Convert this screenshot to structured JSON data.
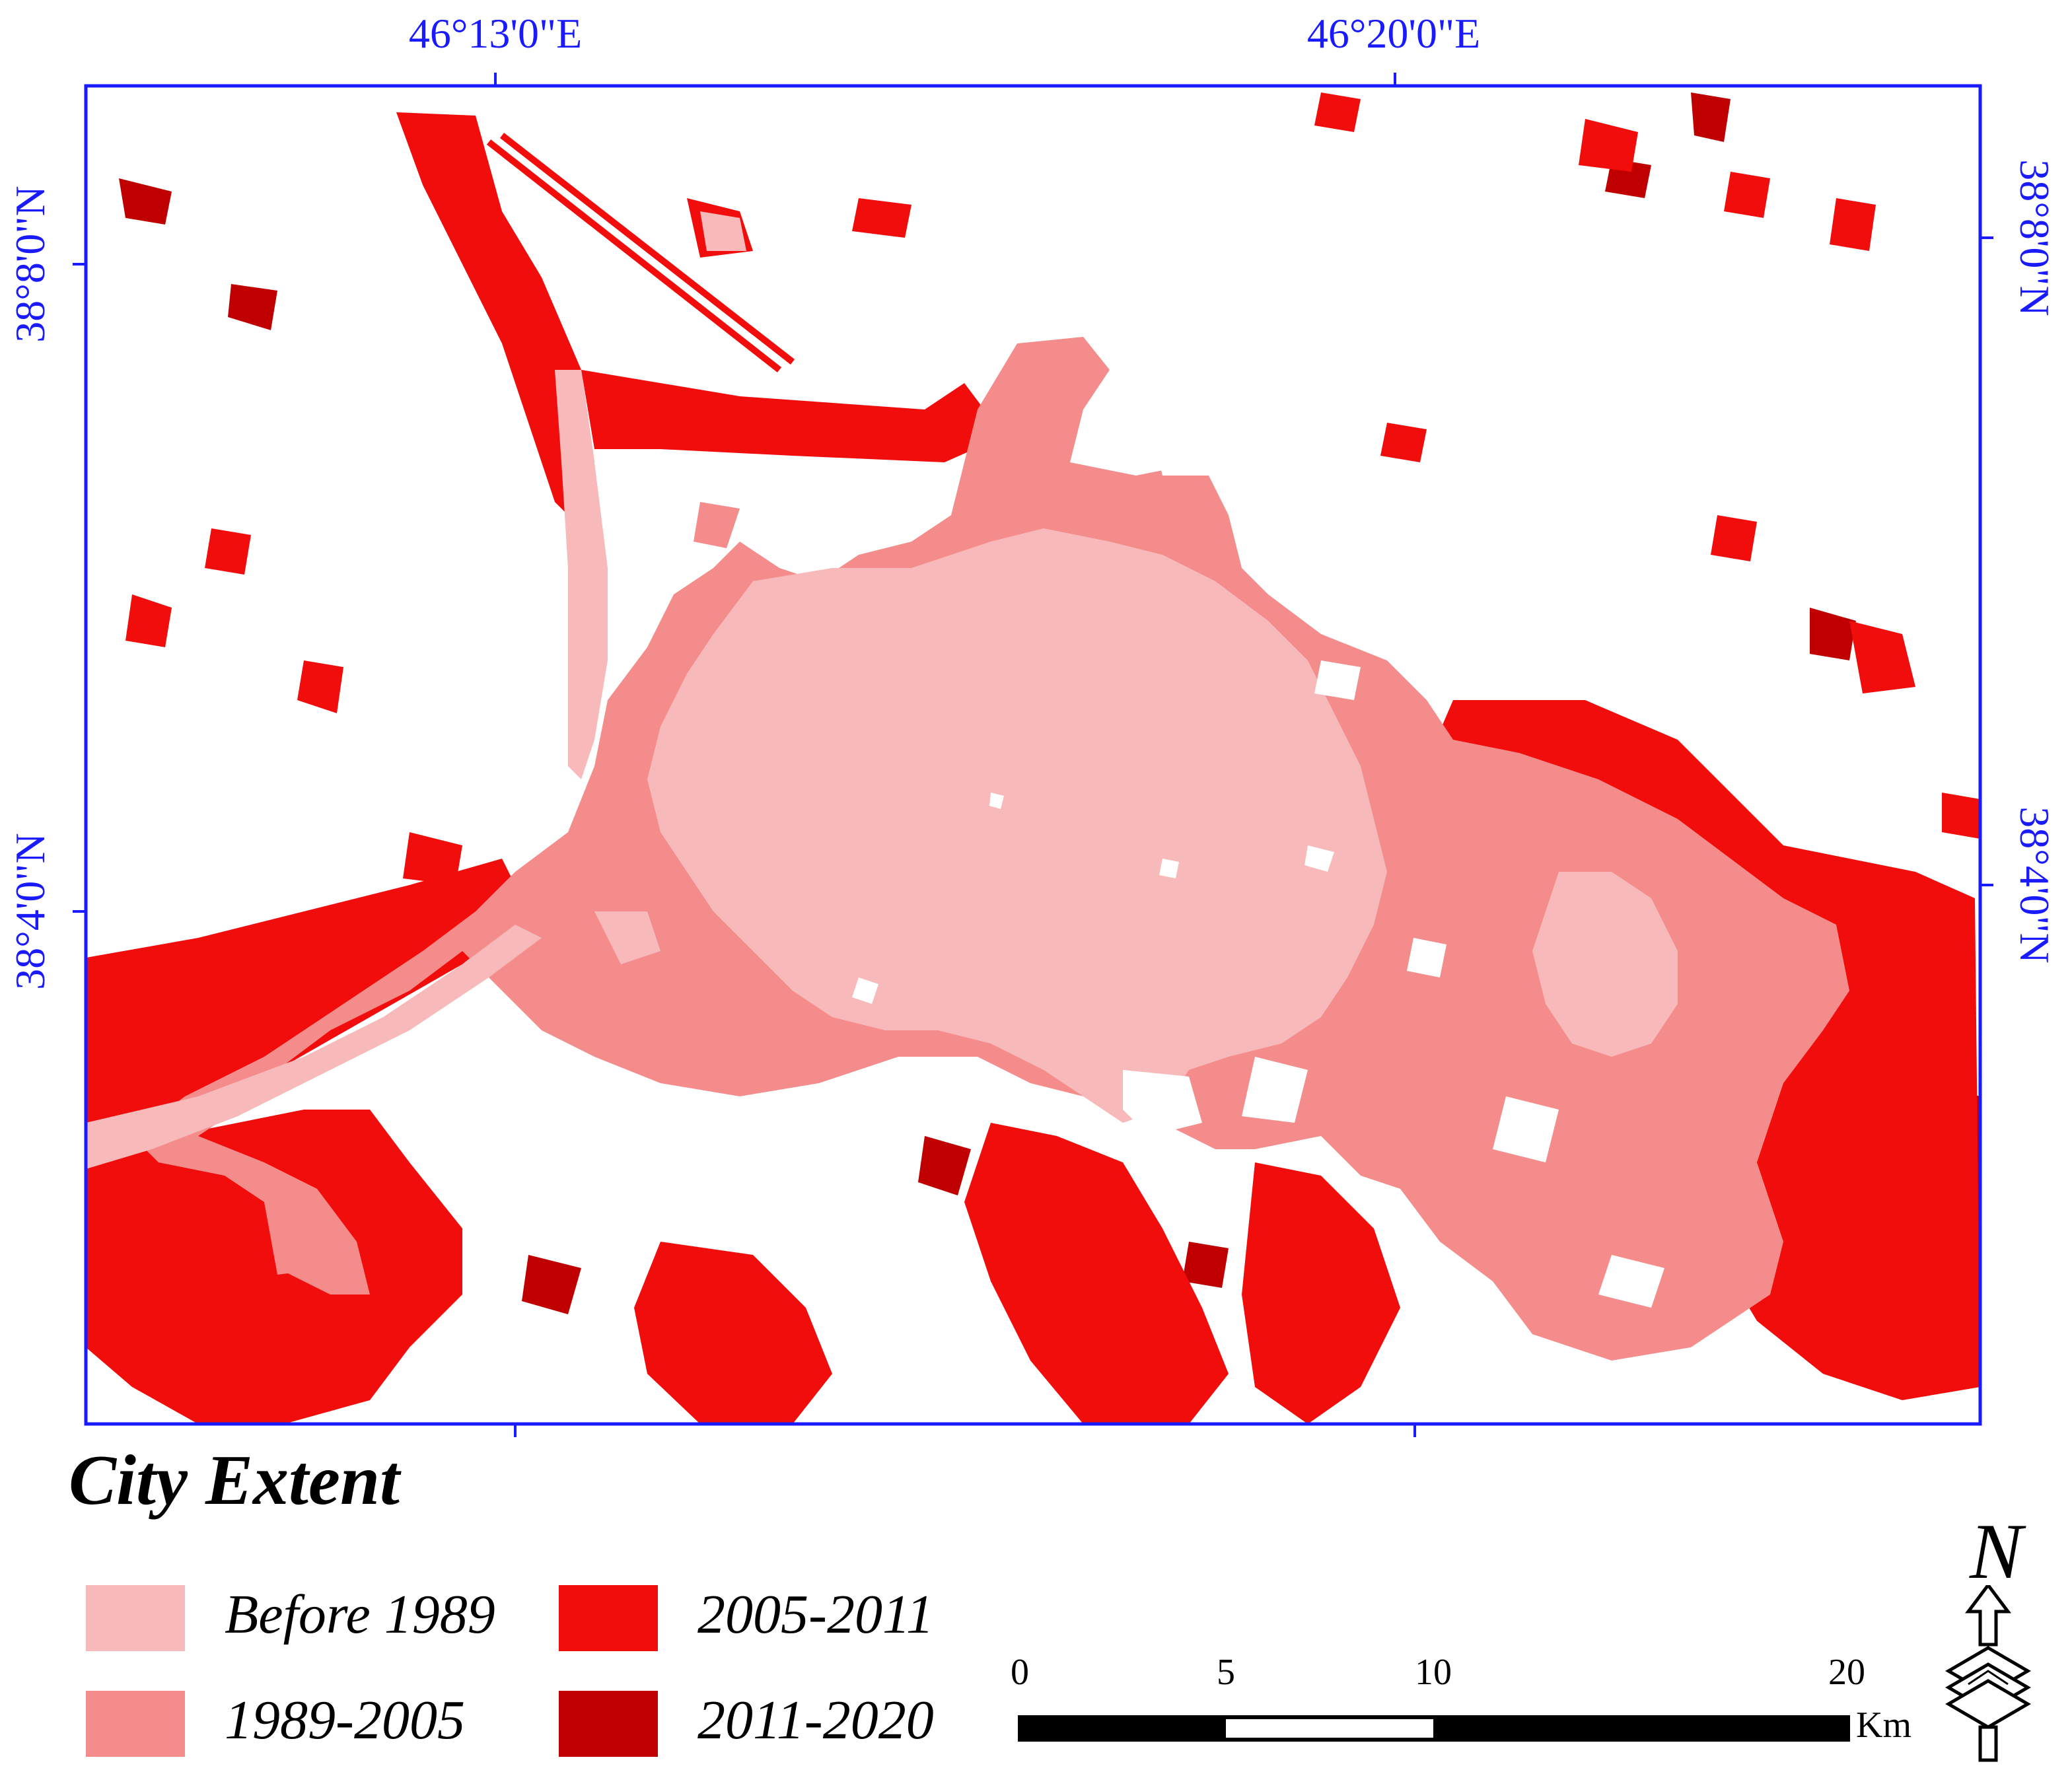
{
  "map": {
    "graticule": {
      "top_labels": [
        "46°13'0\"E",
        "46°20'0\"E"
      ],
      "left_labels": [
        "38°8'0\"N",
        "38°4'0\"N"
      ],
      "right_labels": [
        "38°8'0\"N",
        "38°4'0\"N"
      ]
    },
    "colors": {
      "before_1989": "#f7b9b9",
      "p1989_2005": "#f48c8c",
      "p2005_2011": "#f20d0d",
      "p2011_2020": "#c00000",
      "frame": "#1a1aff"
    }
  },
  "legend": {
    "title": "City Extent",
    "items": [
      {
        "label": "Before 1989",
        "color": "#f7b9b9"
      },
      {
        "label": "1989-2005",
        "color": "#f48c8c"
      },
      {
        "label": "2005-2011",
        "color": "#f20d0d"
      },
      {
        "label": "2011-2020",
        "color": "#c00000"
      }
    ]
  },
  "scale_bar": {
    "ticks": [
      "0",
      "5",
      "10",
      "20"
    ],
    "unit": "Km"
  },
  "north_arrow": {
    "letter": "N",
    "icon": "north-arrow-icon"
  }
}
